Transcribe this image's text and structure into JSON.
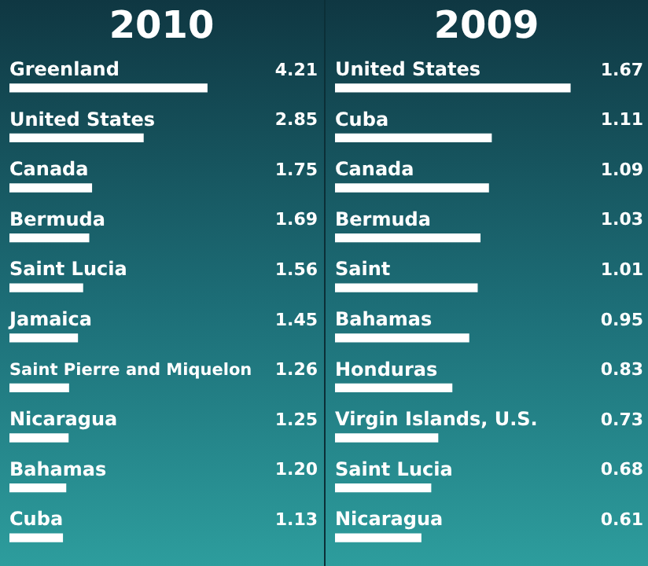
{
  "chart_data": [
    {
      "type": "bar",
      "title": "2010",
      "orientation": "horizontal",
      "data_labels": true,
      "legend": false,
      "tick_labels": false,
      "color": "#ffffff",
      "categories": [
        "Greenland",
        "United States",
        "Canada",
        "Bermuda",
        "Saint Lucia",
        "Jamaica",
        "Saint Pierre and Miquelon",
        "Nicaragua",
        "Bahamas",
        "Cuba"
      ],
      "values": [
        4.21,
        2.85,
        1.75,
        1.69,
        1.56,
        1.45,
        1.26,
        1.25,
        1.2,
        1.13
      ],
      "value_labels": [
        "4.21",
        "2.85",
        "1.75",
        "1.69",
        "1.56",
        "1.45",
        "1.26",
        "1.25",
        "1.20",
        "1.13"
      ]
    },
    {
      "type": "bar",
      "title": "2009",
      "orientation": "horizontal",
      "data_labels": true,
      "legend": false,
      "tick_labels": false,
      "color": "#ffffff",
      "categories": [
        "United States",
        "Cuba",
        "Canada",
        "Bermuda",
        "Saint",
        "Bahamas",
        "Honduras",
        "Virgin Islands, U.S.",
        "Saint Lucia",
        "Nicaragua"
      ],
      "values": [
        1.67,
        1.11,
        1.09,
        1.03,
        1.01,
        0.95,
        0.83,
        0.73,
        0.68,
        0.61
      ],
      "value_labels": [
        "1.67",
        "1.11",
        "1.09",
        "1.03",
        "1.01",
        "0.95",
        "0.83",
        "0.73",
        "0.68",
        "0.61"
      ]
    }
  ]
}
